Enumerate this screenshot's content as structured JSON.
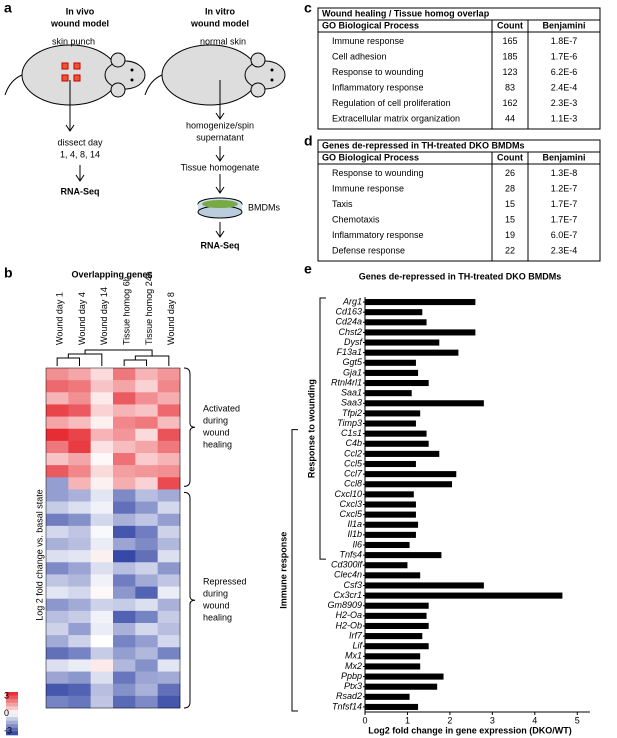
{
  "panel_labels": [
    "a",
    "b",
    "c",
    "d",
    "e"
  ],
  "diagram": {
    "in_vivo": {
      "title": [
        "In vivo",
        "wound model"
      ],
      "steps": [
        "skin punch",
        "dissect day",
        "1, 4, 8, 14",
        "RNA-Seq"
      ]
    },
    "in_vitro": {
      "title": [
        "In vitro",
        "wound model"
      ],
      "steps": [
        "normal skin",
        "homogenize/spin",
        "supernatant",
        "Tissue homogenate",
        "BMDMs",
        "RNA-Seq"
      ]
    }
  },
  "heatmap": {
    "title": "Overlapping genes",
    "columns": [
      "Wound day 1",
      "Wound day 4",
      "Wound day 14",
      "Tissue homog 6h",
      "Tissue homog 24h",
      "Wound day 8"
    ],
    "y_label": "Log 2 fold change vs. basal state",
    "clim": [
      -3,
      3
    ],
    "colorbar_ticks": [
      3,
      0,
      -3
    ],
    "groups": [
      [
        "Activated",
        "during",
        "wound",
        "healing"
      ],
      [
        "Repressed",
        "during",
        "wound",
        "healing"
      ]
    ],
    "rows": [
      [
        1.5,
        1.2,
        0.5,
        1.8,
        1.0,
        1.4
      ],
      [
        2.0,
        1.8,
        0.8,
        1.2,
        0.6,
        1.6
      ],
      [
        1.0,
        1.5,
        0.3,
        2.2,
        1.5,
        1.1
      ],
      [
        2.5,
        2.2,
        0.6,
        1.0,
        0.8,
        2.0
      ],
      [
        1.2,
        0.9,
        0.2,
        1.6,
        1.8,
        0.9
      ],
      [
        2.8,
        2.5,
        1.0,
        1.4,
        0.5,
        2.3
      ],
      [
        1.8,
        2.6,
        0.4,
        0.9,
        1.2,
        1.8
      ],
      [
        0.8,
        1.2,
        0.1,
        1.9,
        0.7,
        1.0
      ],
      [
        2.2,
        1.6,
        0.5,
        1.3,
        1.4,
        1.5
      ],
      [
        -1.5,
        1.0,
        0.2,
        1.1,
        0.6,
        2.4
      ],
      [
        -1.5,
        -1.2,
        -0.4,
        -1.8,
        -1.0,
        -1.3
      ],
      [
        -0.8,
        -0.5,
        -0.2,
        -2.2,
        -1.6,
        -0.6
      ],
      [
        -2.0,
        -1.7,
        -0.6,
        -1.2,
        -0.9,
        -1.5
      ],
      [
        -0.6,
        -0.9,
        -0.1,
        -2.6,
        -2.0,
        -0.7
      ],
      [
        -1.2,
        -1.0,
        -0.3,
        -1.4,
        -1.8,
        -1.1
      ],
      [
        -0.5,
        -0.4,
        0.2,
        -2.8,
        -2.2,
        -0.5
      ],
      [
        -1.8,
        -1.4,
        -0.5,
        -1.0,
        -0.7,
        -1.6
      ],
      [
        -0.9,
        -1.1,
        -0.2,
        -2.0,
        -1.3,
        -0.9
      ],
      [
        -0.4,
        -0.6,
        0.1,
        -1.6,
        -2.4,
        -0.3
      ],
      [
        -1.6,
        -1.3,
        -0.7,
        -0.8,
        -0.5,
        -1.2
      ],
      [
        -1.0,
        -0.8,
        -0.2,
        -2.4,
        -1.9,
        -0.8
      ],
      [
        -0.7,
        -1.5,
        -0.3,
        -1.2,
        -0.6,
        -1.0
      ],
      [
        -1.3,
        -0.7,
        0.0,
        -1.9,
        -1.5,
        -0.6
      ],
      [
        -2.2,
        -1.9,
        -0.8,
        -1.5,
        -1.1,
        -1.9
      ],
      [
        -0.5,
        -0.3,
        0.3,
        -1.1,
        -1.7,
        -0.4
      ],
      [
        -1.4,
        -1.6,
        -0.5,
        -2.1,
        -1.4,
        -1.3
      ],
      [
        -2.6,
        -2.4,
        -1.0,
        -1.7,
        -1.2,
        -2.2
      ],
      [
        -1.9,
        -2.1,
        -0.9,
        -2.3,
        -1.8,
        -2.6
      ]
    ]
  },
  "tables": [
    {
      "title": "Wound healing / Tissue homog overlap",
      "header": [
        "GO Biological Process",
        "Count",
        "Benjamini"
      ],
      "rows": [
        [
          "Immune response",
          165,
          "1.8E-7"
        ],
        [
          "Cell adhesion",
          185,
          "1.7E-6"
        ],
        [
          "Response to wounding",
          123,
          "6.2E-6"
        ],
        [
          "Inflammatory response",
          83,
          "2.4E-4"
        ],
        [
          "Regulation of cell proliferation",
          162,
          "2.3E-3"
        ],
        [
          "Extracellular matrix organization",
          44,
          "1.1E-3"
        ]
      ]
    },
    {
      "title": "Genes de-repressed in TH-treated DKO BMDMs",
      "header": [
        "GO Biological Process",
        "Count",
        "Benjamini"
      ],
      "rows": [
        [
          "Response to wounding",
          26,
          "1.3E-8"
        ],
        [
          "Immune response",
          28,
          "1.2E-7"
        ],
        [
          "Taxis",
          15,
          "1.7E-7"
        ],
        [
          "Chemotaxis",
          15,
          "1.7E-7"
        ],
        [
          "Inflammatory response",
          19,
          "6.0E-7"
        ],
        [
          "Defense response",
          22,
          "2.3E-4"
        ]
      ]
    }
  ],
  "chart_data": {
    "type": "bar",
    "orientation": "horizontal",
    "title": "Genes de-repressed in TH-treated DKO BMDMs",
    "x_label": "Log2 fold change in gene expression (DKO/WT)",
    "categories": [
      "Arg1",
      "Cd163",
      "Cd24a",
      "Chst2",
      "Dysf",
      "F13a1",
      "Ggt5",
      "Gja1",
      "Rtnl4rl1",
      "Saa1",
      "Saa3",
      "Tfpi2",
      "Timp3",
      "C1s1",
      "C4b",
      "Ccl2",
      "Ccl5",
      "Ccl7",
      "Ccl8",
      "Cxcl10",
      "Cxcl3",
      "Cxcl5",
      "Il1a",
      "Il1b",
      "Il6",
      "Tnfs4",
      "Cd300lf",
      "Clec4n",
      "Csf3",
      "Cx3cr1",
      "Gm8909",
      "H2-Oa",
      "H2-Ob",
      "Irf7",
      "Lif",
      "Mx1",
      "Mx2",
      "Ppbp",
      "Ptx3",
      "Rsad2",
      "Tnfsf14"
    ],
    "values": [
      2.6,
      1.35,
      1.45,
      2.6,
      1.75,
      2.2,
      1.2,
      1.25,
      1.5,
      1.1,
      2.8,
      1.3,
      1.2,
      1.45,
      1.5,
      1.75,
      1.2,
      2.15,
      2.05,
      1.15,
      1.2,
      1.2,
      1.25,
      1.2,
      1.05,
      1.8,
      1.0,
      1.3,
      2.8,
      4.65,
      1.5,
      1.45,
      1.5,
      1.35,
      1.5,
      1.3,
      1.3,
      1.85,
      1.7,
      1.05,
      1.25
    ],
    "color": "#000000",
    "xlim": [
      0,
      5.3
    ],
    "xticks": [
      0,
      1,
      2,
      3,
      4,
      5
    ],
    "groups": [
      {
        "name": "Response to wounding",
        "from": "Arg1",
        "to": "Tnfs4"
      },
      {
        "name": "Immune response",
        "from": "C1s1",
        "to": "Tnfsf14"
      }
    ]
  }
}
